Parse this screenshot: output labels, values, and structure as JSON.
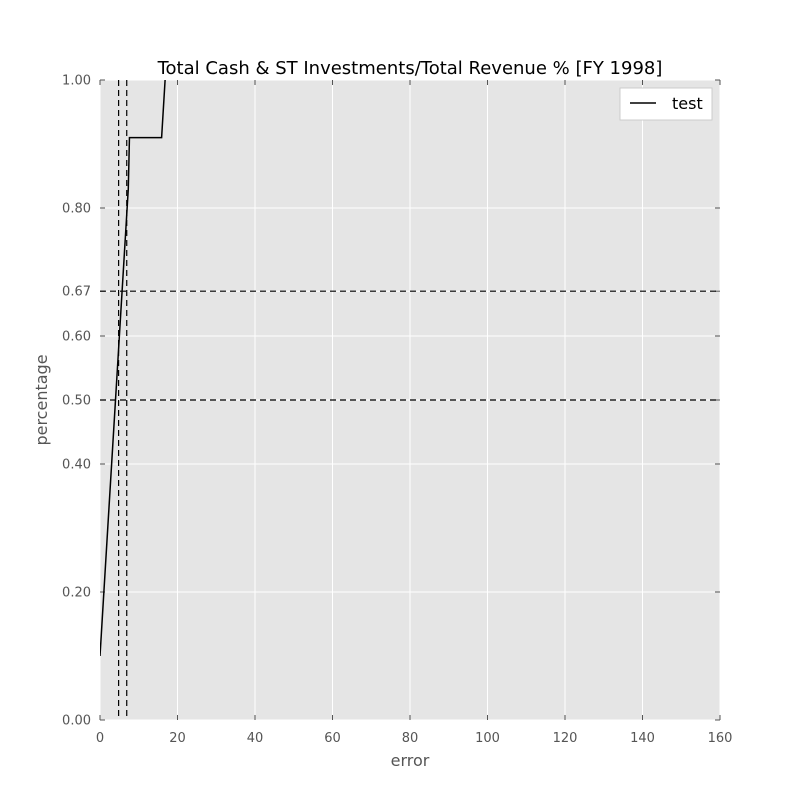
{
  "chart_data": {
    "type": "line",
    "title": "Total Cash & ST Investments/Total Revenue % [FY 1998]",
    "xlabel": "error",
    "ylabel": "percentage",
    "xlim": [
      0,
      160
    ],
    "ylim": [
      0.0,
      1.0
    ],
    "x_ticks": [
      0,
      20,
      40,
      60,
      80,
      100,
      120,
      140,
      160
    ],
    "x_tick_labels": [
      "0",
      "20",
      "40",
      "60",
      "80",
      "100",
      "120",
      "140",
      "160"
    ],
    "y_ticks": [
      0.0,
      0.2,
      0.4,
      0.5,
      0.6,
      0.67,
      0.8,
      1.0
    ],
    "y_tick_labels": [
      "0.00",
      "0.20",
      "0.40",
      "0.50",
      "0.60",
      "0.67",
      "0.80",
      "1.00"
    ],
    "grid": true,
    "legend_position": "top-right",
    "series": [
      {
        "name": "test",
        "color": "#000000",
        "x": [
          0,
          7.3,
          7.6,
          15.9,
          16.8
        ],
        "y": [
          0.1,
          0.83,
          0.91,
          0.91,
          1.0
        ]
      }
    ],
    "reference_lines": {
      "horizontal": [
        0.5,
        0.67
      ],
      "vertical": [
        4.8,
        6.9
      ],
      "style": "dashed",
      "color": "#000000"
    },
    "colors": {
      "plot_background": "#e5e5e5",
      "grid": "#ffffff",
      "text": "#555555"
    }
  }
}
